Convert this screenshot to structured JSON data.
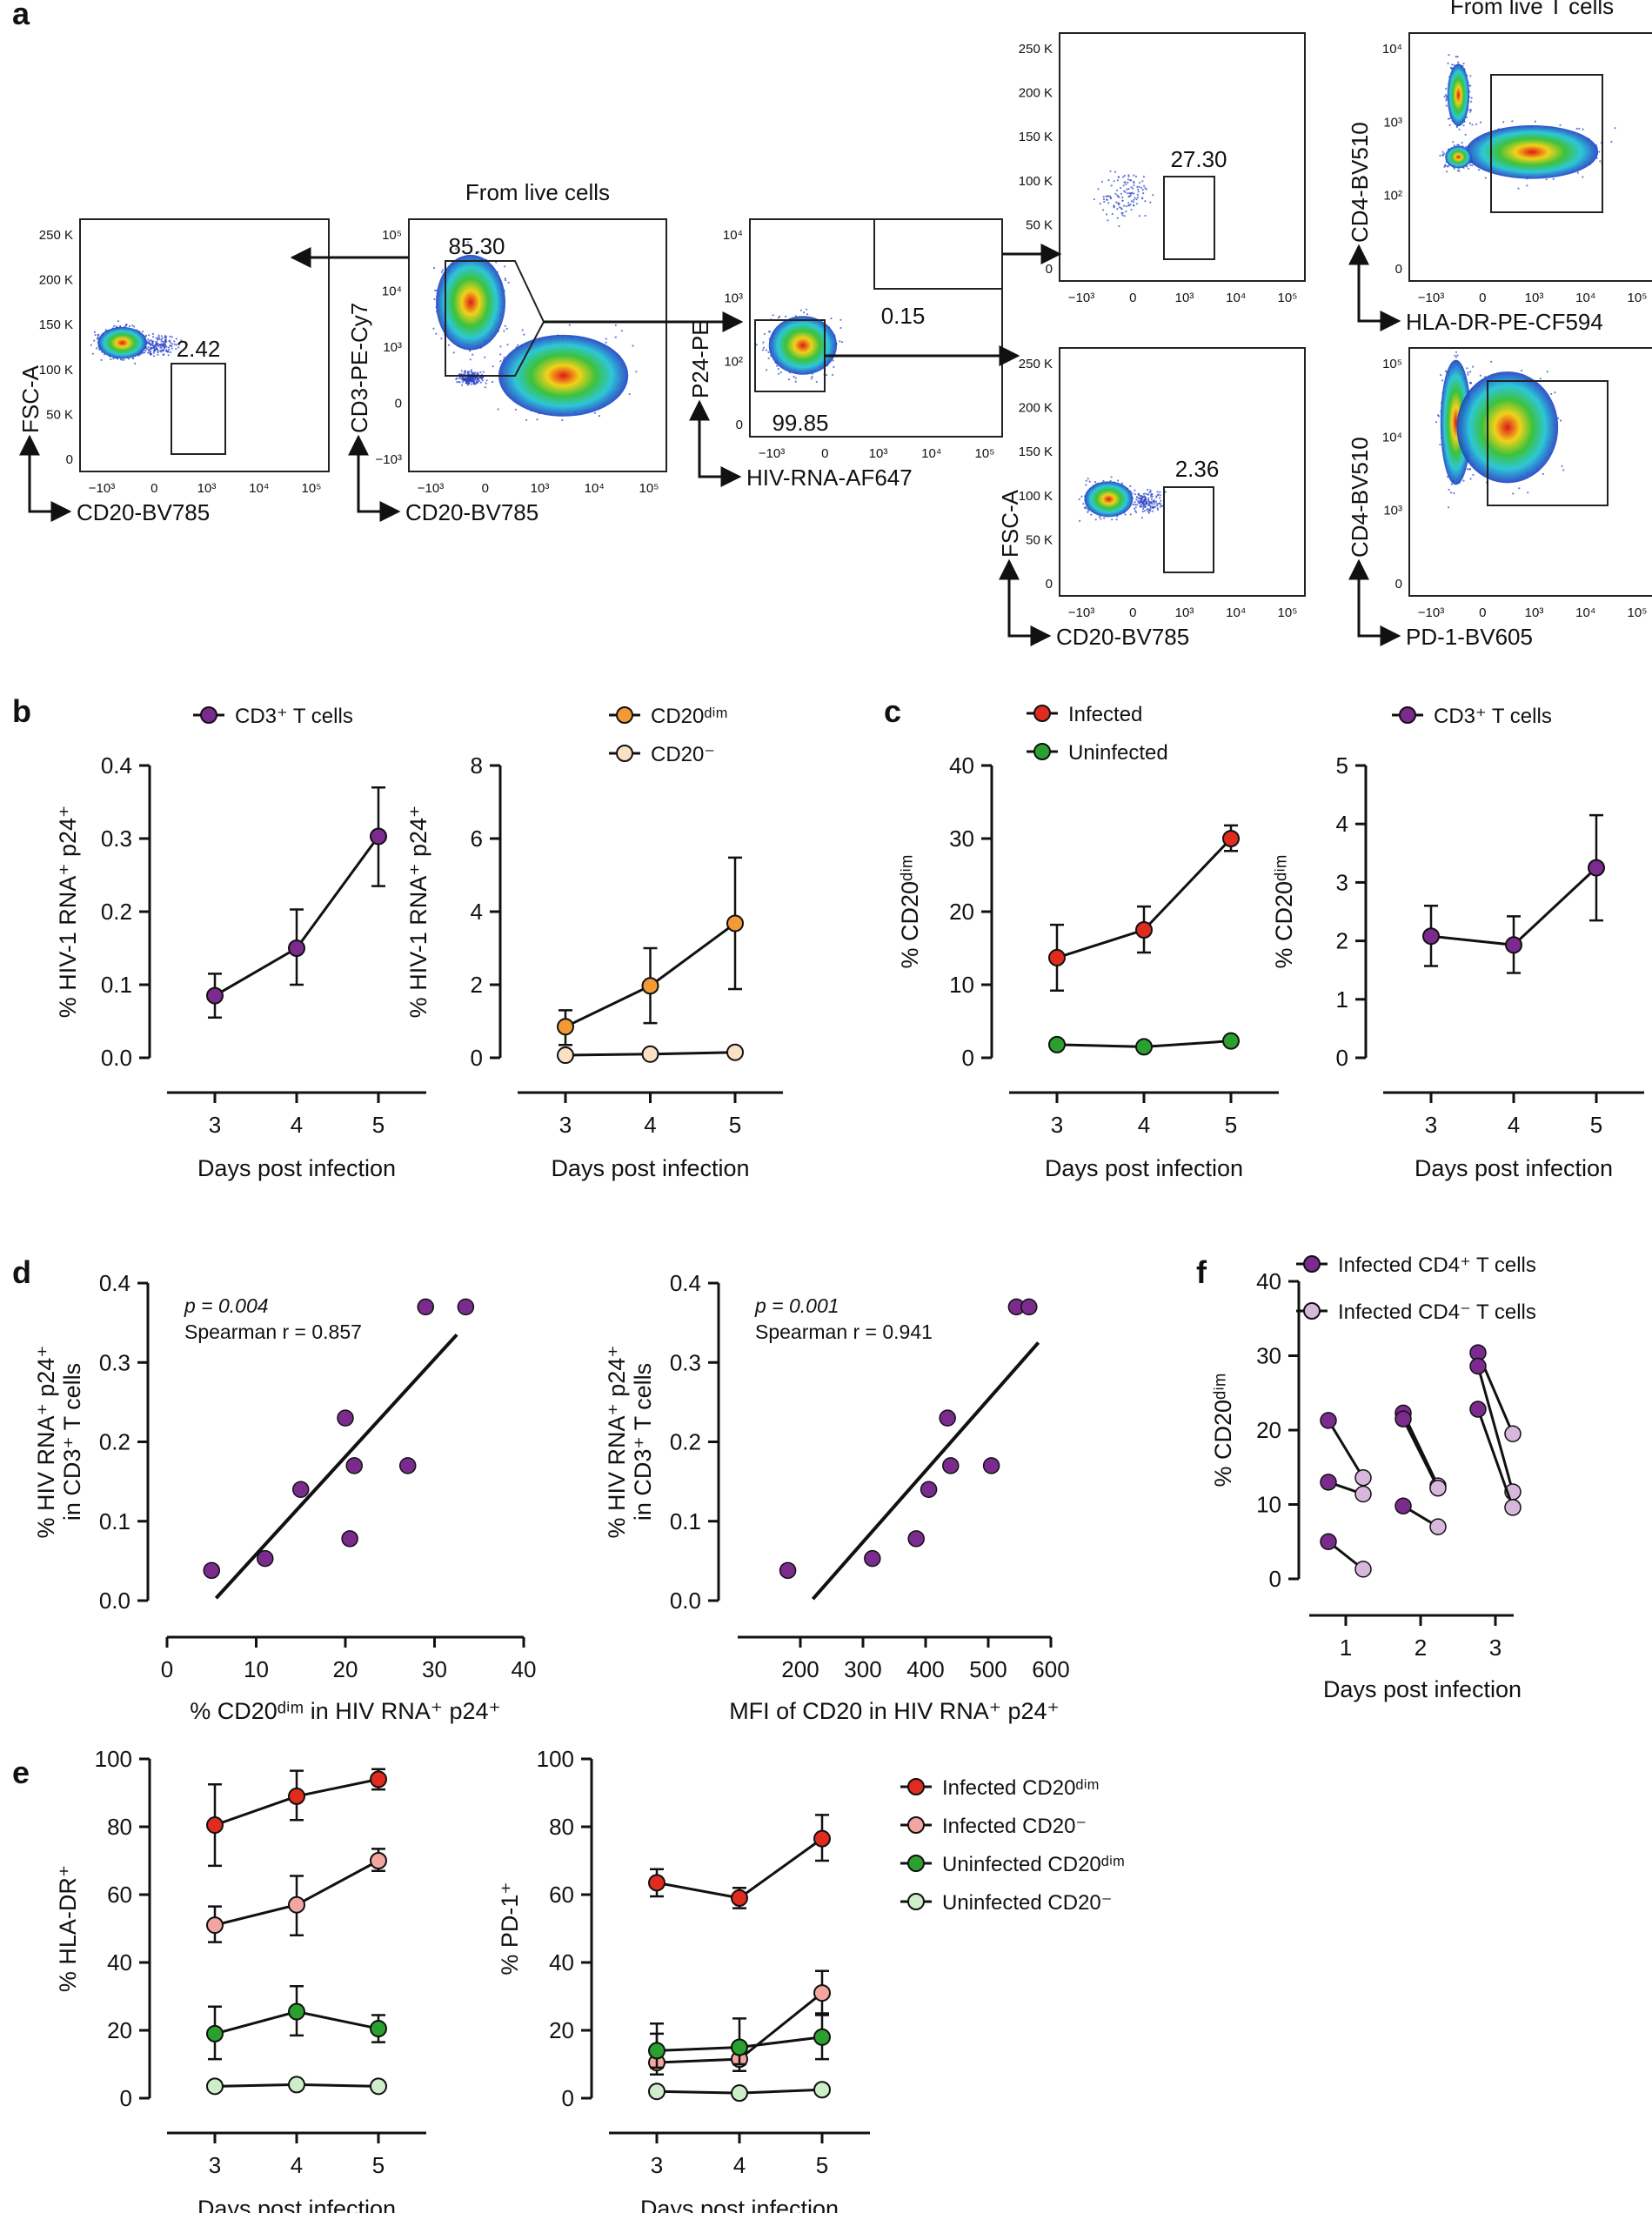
{
  "panel_letters": {
    "a": "a",
    "b": "b",
    "c": "c",
    "d": "d",
    "e": "e",
    "f": "f"
  },
  "colors": {
    "purple": "#7b2a8e",
    "light_purple": "#d7b7dc",
    "red": "#e02b1f",
    "pink": "#f3a6a0",
    "green": "#2aa12e",
    "light_green": "#cdeec8",
    "orange": "#f39a35",
    "peach": "#fbe1c4",
    "dot_blue": "#2a43c8"
  },
  "flow": [
    {
      "id": "fc1",
      "title": "",
      "xlabel": "CD20-BV785",
      "ylabel": "FSC-A",
      "yticks": [
        "250 K",
        "200 K",
        "150 K",
        "100 K",
        "50 K",
        "0"
      ],
      "xticks": [
        "−10³",
        "0",
        "10³",
        "10⁴",
        "10⁵"
      ],
      "gate_value": "2.42"
    },
    {
      "id": "fc2",
      "title": "From live cells",
      "xlabel": "CD20-BV785",
      "ylabel": "CD3-PE-Cy7",
      "yticks": [
        "10⁵",
        "10⁴",
        "10³",
        "0",
        "−10³"
      ],
      "xticks": [
        "−10³",
        "0",
        "10³",
        "10⁴",
        "10⁵"
      ],
      "gate_value": "85.30"
    },
    {
      "id": "fc3",
      "title": "",
      "xlabel": "HIV-RNA-AF647",
      "ylabel": "P24-PE",
      "yticks": [
        "10⁴",
        "10³",
        "10²",
        "0"
      ],
      "xticks": [
        "−10³",
        "0",
        "10³",
        "10⁴",
        "10⁵"
      ],
      "gate_value": "0.15",
      "gate_value2": "99.85"
    },
    {
      "id": "fc4",
      "title": "",
      "xlabel": "",
      "ylabel": "",
      "yticks": [
        "250 K",
        "200 K",
        "150 K",
        "100 K",
        "50 K",
        "0"
      ],
      "xticks": [
        "−10³",
        "0",
        "10³",
        "10⁴",
        "10⁵"
      ],
      "gate_value": "27.30"
    },
    {
      "id": "fc5",
      "title": "",
      "xlabel": "CD20-BV785",
      "ylabel": "FSC-A",
      "yticks": [
        "250 K",
        "200 K",
        "150 K",
        "100 K",
        "50 K",
        "0"
      ],
      "xticks": [
        "−10³",
        "0",
        "10³",
        "10⁴",
        "10⁵"
      ],
      "gate_value": "2.36"
    },
    {
      "id": "fc6",
      "title": "From live T cells",
      "xlabel": "HLA-DR-PE-CF594",
      "ylabel": "CD4-BV510",
      "yticks": [
        "10⁴",
        "10³",
        "10²",
        "0"
      ],
      "xticks": [
        "−10³",
        "0",
        "10³",
        "10⁴",
        "10⁵"
      ],
      "gate_value": ""
    },
    {
      "id": "fc7",
      "title": "",
      "xlabel": "PD-1-BV605",
      "ylabel": "CD4-BV510",
      "yticks": [
        "10⁵",
        "10⁴",
        "10³",
        "0"
      ],
      "xticks": [
        "−10³",
        "0",
        "10³",
        "10⁴",
        "10⁵"
      ],
      "gate_value": ""
    }
  ],
  "chart_data": [
    {
      "id": "b1",
      "type": "line",
      "xlabel": "Days post infection",
      "ylabel": "% HIV-1 RNA⁺ p24⁺",
      "ylim": [
        0,
        0.4
      ],
      "yticks": [
        "0.0",
        "0.1",
        "0.2",
        "0.3",
        "0.4"
      ],
      "categories": [
        "3",
        "4",
        "5"
      ],
      "legend": [
        "CD3⁺ T cells"
      ],
      "series": [
        {
          "name": "CD3⁺ T cells",
          "color": "purple",
          "values": [
            0.085,
            0.15,
            0.303
          ],
          "err_lo": [
            0.055,
            0.1,
            0.235
          ],
          "err_hi": [
            0.115,
            0.203,
            0.37
          ]
        }
      ]
    },
    {
      "id": "b2",
      "type": "line",
      "xlabel": "Days post infection",
      "ylabel": "% HIV-1 RNA⁺ p24⁺",
      "ylim": [
        0,
        8
      ],
      "yticks": [
        "0",
        "2",
        "4",
        "6",
        "8"
      ],
      "categories": [
        "3",
        "4",
        "5"
      ],
      "legend": [
        "CD20ᵈⁱᵐ",
        "CD20⁻"
      ],
      "series": [
        {
          "name": "CD20dim",
          "color": "orange",
          "values": [
            0.85,
            1.97,
            3.68
          ],
          "err_lo": [
            0.35,
            0.95,
            1.88
          ],
          "err_hi": [
            1.3,
            3.0,
            5.48
          ]
        },
        {
          "name": "CD20⁻",
          "color": "peach",
          "values": [
            0.07,
            0.1,
            0.15
          ],
          "err_lo": [
            0.07,
            0.1,
            0.15
          ],
          "err_hi": [
            0.07,
            0.1,
            0.15
          ]
        }
      ]
    },
    {
      "id": "c1",
      "type": "line",
      "xlabel": "Days post infection",
      "ylabel": "% CD20ᵈⁱᵐ",
      "ylim": [
        0,
        40
      ],
      "yticks": [
        "0",
        "10",
        "20",
        "30",
        "40"
      ],
      "categories": [
        "3",
        "4",
        "5"
      ],
      "legend": [
        "Infected",
        "Uninfected"
      ],
      "series": [
        {
          "name": "Infected",
          "color": "red",
          "values": [
            13.7,
            17.5,
            30.0
          ],
          "err_lo": [
            9.2,
            14.4,
            28.3
          ],
          "err_hi": [
            18.2,
            20.7,
            31.8
          ]
        },
        {
          "name": "Uninfected",
          "color": "green",
          "values": [
            1.8,
            1.5,
            2.3
          ],
          "err_lo": [
            1.8,
            1.5,
            2.3
          ],
          "err_hi": [
            1.8,
            1.5,
            2.3
          ]
        }
      ]
    },
    {
      "id": "c2",
      "type": "line",
      "xlabel": "Days post infection",
      "ylabel": "% CD20ᵈⁱᵐ",
      "ylim": [
        0,
        5
      ],
      "yticks": [
        "0",
        "1",
        "2",
        "3",
        "4",
        "5"
      ],
      "categories": [
        "3",
        "4",
        "5"
      ],
      "legend": [
        "CD3⁺ T cells"
      ],
      "series": [
        {
          "name": "CD3⁺ T cells",
          "color": "purple",
          "values": [
            2.08,
            1.93,
            3.25
          ],
          "err_lo": [
            1.57,
            1.45,
            2.35
          ],
          "err_hi": [
            2.6,
            2.42,
            4.15
          ]
        }
      ]
    },
    {
      "id": "d1",
      "type": "scatter",
      "xlabel": "% CD20ᵈⁱᵐ in HIV RNA⁺ p24⁺",
      "ylabel1": "% HIV RNA⁺ p24⁺",
      "ylabel2": "in CD3⁺ T cells",
      "xlim": [
        0,
        40
      ],
      "ylim": [
        0,
        0.4
      ],
      "xticks": [
        "0",
        "10",
        "20",
        "30",
        "40"
      ],
      "yticks": [
        "0.0",
        "0.1",
        "0.2",
        "0.3",
        "0.4"
      ],
      "p_text": "p = 0.004",
      "r_text": "Spearman r =  0.857",
      "x": [
        5,
        11,
        15,
        20,
        20.5,
        21,
        27,
        29,
        33.5
      ],
      "y": [
        0.038,
        0.053,
        0.14,
        0.23,
        0.078,
        0.17,
        0.17,
        0.37,
        0.37
      ],
      "fit": [
        [
          5.5,
          0.003
        ],
        [
          32.5,
          0.335
        ]
      ]
    },
    {
      "id": "d2",
      "type": "scatter",
      "xlabel": "MFI of CD20 in HIV RNA⁺ p24⁺",
      "ylabel1": "% HIV RNA⁺ p24⁺",
      "ylabel2": "in CD3⁺ T cells",
      "xlim": [
        100,
        600
      ],
      "ylim": [
        0,
        0.4
      ],
      "xticks": [
        "200",
        "300",
        "400",
        "500",
        "600"
      ],
      "yticks": [
        "0.0",
        "0.1",
        "0.2",
        "0.3",
        "0.4"
      ],
      "p_text": "p = 0.001",
      "r_text": "Spearman r = 0.941",
      "x": [
        180,
        315,
        385,
        405,
        435,
        440,
        505,
        545,
        565
      ],
      "y": [
        0.038,
        0.053,
        0.078,
        0.14,
        0.23,
        0.17,
        0.17,
        0.37,
        0.37
      ],
      "fit": [
        [
          220,
          0.002
        ],
        [
          580,
          0.325
        ]
      ]
    },
    {
      "id": "e1",
      "type": "line",
      "xlabel": "Days post infection",
      "ylabel": "% HLA-DR⁺",
      "ylim": [
        0,
        100
      ],
      "yticks": [
        "0",
        "20",
        "40",
        "60",
        "80",
        "100"
      ],
      "categories": [
        "3",
        "4",
        "5"
      ],
      "series": [
        {
          "name": "Infected CD20dim",
          "color": "red",
          "values": [
            80.5,
            89,
            94
          ],
          "err_lo": [
            68.5,
            82,
            91
          ],
          "err_hi": [
            92.5,
            96.5,
            97
          ]
        },
        {
          "name": "Infected CD20⁻",
          "color": "pink",
          "values": [
            51,
            57,
            70
          ],
          "err_lo": [
            46,
            48,
            67
          ],
          "err_hi": [
            56.5,
            65.5,
            73.5
          ]
        },
        {
          "name": "Uninfected CD20dim",
          "color": "green",
          "values": [
            19,
            25.5,
            20.5
          ],
          "err_lo": [
            11.5,
            18.5,
            16.5
          ],
          "err_hi": [
            27,
            33,
            24.5
          ]
        },
        {
          "name": "Uninfected CD20⁻",
          "color": "light_green",
          "values": [
            3.5,
            4,
            3.5
          ],
          "err_lo": [
            3.5,
            4,
            3.5
          ],
          "err_hi": [
            3.5,
            4,
            3.5
          ]
        }
      ]
    },
    {
      "id": "e2",
      "type": "line",
      "xlabel": "Days post infection",
      "ylabel": "% PD-1⁺",
      "ylim": [
        0,
        100
      ],
      "yticks": [
        "0",
        "20",
        "40",
        "60",
        "80",
        "100"
      ],
      "categories": [
        "3",
        "4",
        "5"
      ],
      "legend": [
        "Infected CD20ᵈⁱᵐ",
        "Infected CD20⁻",
        "Uninfected CD20ᵈⁱᵐ",
        "Uninfected CD20⁻"
      ],
      "series": [
        {
          "name": "Infected CD20dim",
          "color": "red",
          "values": [
            63.5,
            59,
            76.5
          ],
          "err_lo": [
            59.5,
            56,
            70
          ],
          "err_hi": [
            67.5,
            62,
            83.5
          ]
        },
        {
          "name": "Infected CD20⁻",
          "color": "pink",
          "values": [
            10.5,
            11.5,
            31
          ],
          "err_lo": [
            7,
            8,
            25
          ],
          "err_hi": [
            22,
            14,
            37.5
          ]
        },
        {
          "name": "Uninfected CD20dim",
          "color": "green",
          "values": [
            14,
            15,
            18
          ],
          "err_lo": [
            9,
            10,
            11.5
          ],
          "err_hi": [
            19,
            23.5,
            24.5
          ]
        },
        {
          "name": "Uninfected CD20⁻",
          "color": "light_green",
          "values": [
            2,
            1.5,
            2.5
          ],
          "err_lo": [
            2,
            1.5,
            2.5
          ],
          "err_hi": [
            2,
            1.5,
            2.5
          ]
        }
      ]
    },
    {
      "id": "f",
      "type": "paired",
      "xlabel": "Days post infection",
      "ylabel": "% CD20ᵈⁱᵐ",
      "ylim": [
        0,
        40
      ],
      "yticks": [
        "0",
        "10",
        "20",
        "30",
        "40"
      ],
      "categories": [
        "1",
        "2",
        "3"
      ],
      "legend": [
        "Infected CD4⁺ T cells",
        "Infected CD4⁻ T cells"
      ],
      "pairs": [
        [
          1,
          21.3,
          13.6
        ],
        [
          1,
          13,
          11.4
        ],
        [
          1,
          5,
          1.3
        ],
        [
          2,
          22.3,
          12.5
        ],
        [
          2,
          21.5,
          12.2
        ],
        [
          2,
          9.8,
          7
        ],
        [
          3,
          30.4,
          19.5
        ],
        [
          3,
          28.6,
          11.7
        ],
        [
          3,
          22.8,
          9.6
        ]
      ]
    }
  ]
}
